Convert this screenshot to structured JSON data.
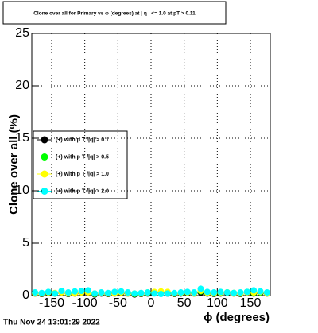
{
  "chart_data": {
    "type": "scatter",
    "title": "Clone  over all for Primary vs φ (degrees) at | η | <= 1.0 at pT > 0.11",
    "x_label": "ϕ (degrees)",
    "y_label": "Clone  over all (%)",
    "footer": "Thu Nov 24 13:01:29 2022",
    "x": [
      -175,
      -165,
      -155,
      -145,
      -135,
      -125,
      -115,
      -105,
      -95,
      -85,
      -75,
      -65,
      -55,
      -45,
      -35,
      -25,
      -15,
      -5,
      5,
      15,
      25,
      35,
      45,
      55,
      65,
      75,
      85,
      95,
      105,
      115,
      125,
      135,
      145,
      155,
      165,
      175
    ],
    "series": [
      {
        "name": "(+) with p T /|q| > 0.1",
        "color": "#000000",
        "values": [
          0.2,
          0.15,
          0.25,
          0.2,
          0.3,
          0.15,
          0.2,
          0.25,
          0.3,
          0.1,
          0.2,
          0.15,
          0.2,
          0.25,
          0.2,
          0.1,
          0.15,
          0.2,
          0.25,
          0.3,
          0.2,
          0.15,
          0.2,
          0.25,
          0.2,
          0.3,
          0.2,
          0.15,
          0.2,
          0.25,
          0.2,
          0.15,
          0.3,
          0.2,
          0.25,
          0.2
        ]
      },
      {
        "name": "(+) with p T /|q| > 0.5",
        "color": "#00ff00",
        "values": [
          0.25,
          0.2,
          0.3,
          0.2,
          0.35,
          0.2,
          0.25,
          0.3,
          0.35,
          0.15,
          0.25,
          0.2,
          0.25,
          0.3,
          0.25,
          0.15,
          0.2,
          0.25,
          0.3,
          0.35,
          0.25,
          0.2,
          0.25,
          0.3,
          0.25,
          0.4,
          0.25,
          0.2,
          0.25,
          0.3,
          0.25,
          0.2,
          0.35,
          0.25,
          0.3,
          0.25
        ]
      },
      {
        "name": "(+) with p T /|q| > 1.0",
        "color": "#ffff00",
        "values": [
          0.2,
          0.2,
          0.3,
          0.25,
          0.3,
          0.2,
          0.2,
          0.3,
          0.3,
          0.2,
          0.25,
          0.2,
          0.2,
          0.3,
          0.2,
          0.2,
          0.2,
          0.3,
          0.35,
          0.4,
          0.35,
          0.2,
          0.25,
          0.3,
          0.2,
          0.45,
          0.25,
          0.2,
          0.3,
          0.3,
          0.2,
          0.2,
          0.3,
          0.3,
          0.35,
          0.2
        ]
      },
      {
        "name": "(+) with p T /|q| > 2.0",
        "color": "#00ffff",
        "values": [
          0.3,
          0.25,
          0.35,
          0.2,
          0.45,
          0.3,
          0.4,
          0.45,
          0.5,
          0.2,
          0.3,
          0.25,
          0.35,
          0.4,
          0.3,
          0.2,
          0.25,
          0.3,
          0.2,
          0.15,
          0.2,
          0.25,
          0.3,
          0.35,
          0.3,
          0.65,
          0.35,
          0.3,
          0.35,
          0.3,
          0.25,
          0.3,
          0.35,
          0.5,
          0.4,
          0.3
        ]
      }
    ],
    "xlim": [
      -180,
      180
    ],
    "ylim": [
      0,
      25
    ],
    "xticks": [
      -150,
      -100,
      -50,
      0,
      50,
      100,
      150
    ],
    "yticks": [
      0,
      5,
      10,
      15,
      20,
      25
    ],
    "grid": true,
    "legend_position": "left"
  }
}
